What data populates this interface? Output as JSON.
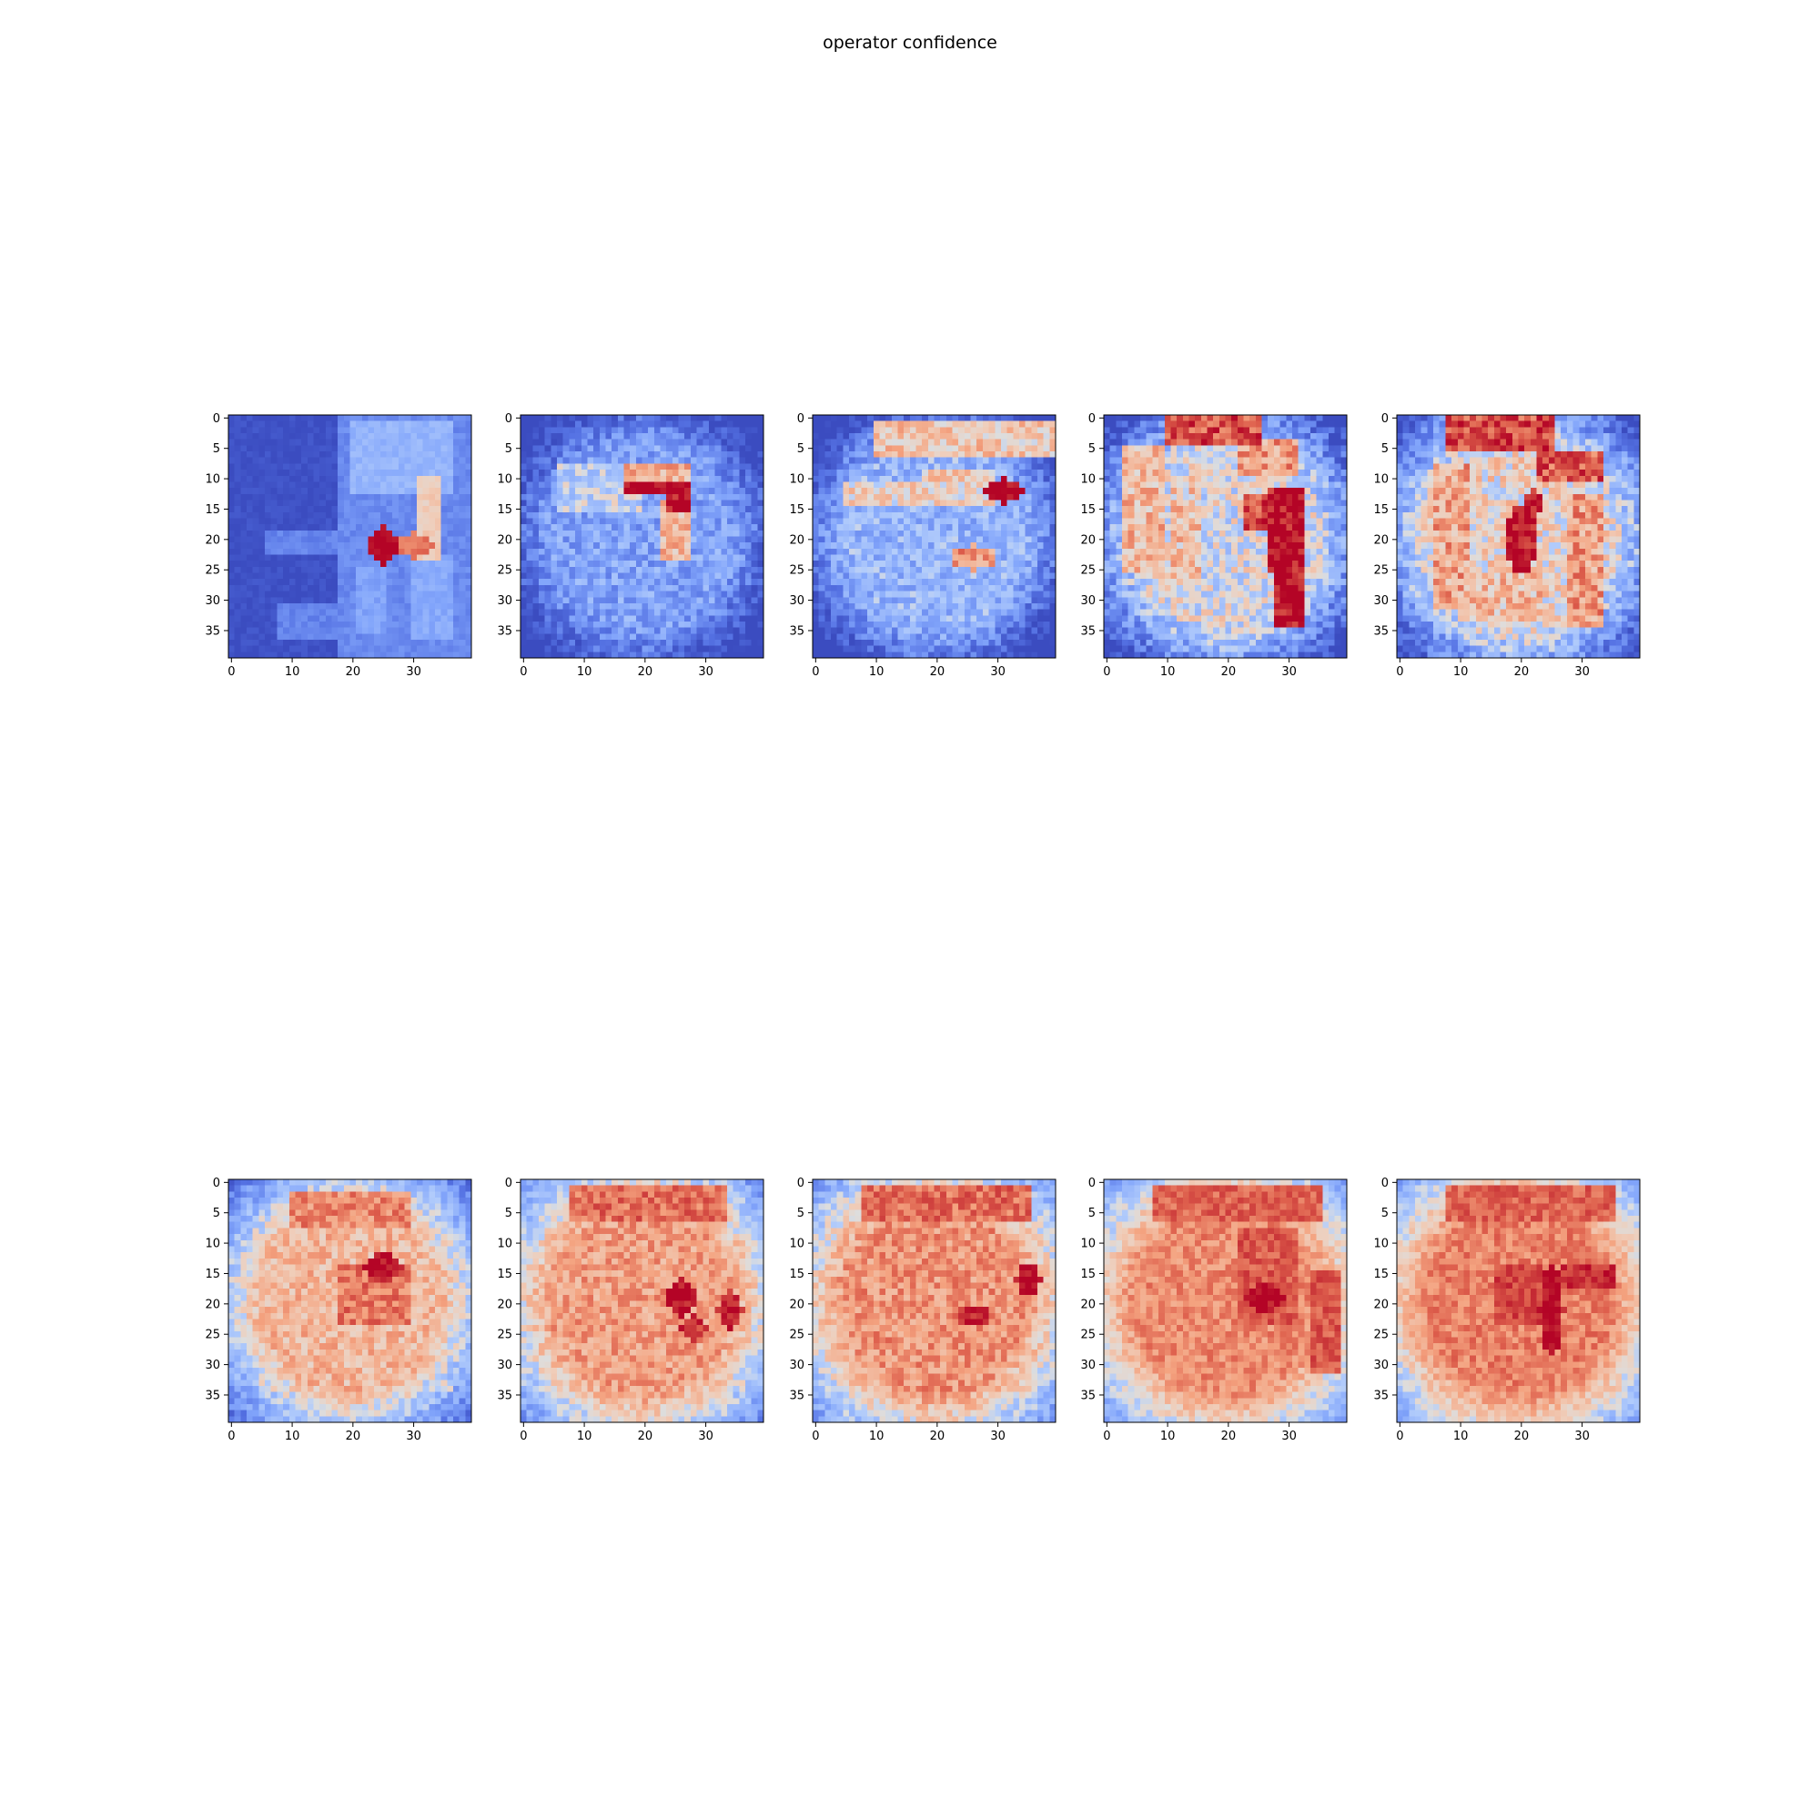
{
  "figure": {
    "title": "operator confidence"
  },
  "chart_data": {
    "type": "heatmap",
    "layout": {
      "rows": 2,
      "cols": 5
    },
    "colormap": {
      "name": "coolwarm",
      "low": "#3b4cc0",
      "mid": "#dddddd",
      "high": "#b40426"
    },
    "grid_size": 40,
    "x_ticks": [
      0,
      10,
      20,
      30
    ],
    "y_ticks": [
      0,
      5,
      10,
      15,
      20,
      25,
      30,
      35
    ],
    "x_tick_labels": [
      "0",
      "10",
      "20",
      "30"
    ],
    "y_tick_labels": [
      "0",
      "5",
      "10",
      "15",
      "20",
      "25",
      "30",
      "35"
    ],
    "panels": [
      {
        "id": "r1c1",
        "base": 0.02,
        "edge_drop": 0.0,
        "noise": 0.04,
        "regions": [
          {
            "type": "rect",
            "x0": 18,
            "x1": 40,
            "y0": 0,
            "y1": 40,
            "value": 0.22
          },
          {
            "type": "rect",
            "x0": 6,
            "x1": 18,
            "y0": 19,
            "y1": 23,
            "value": 0.2
          },
          {
            "type": "rect",
            "x0": 18,
            "x1": 21,
            "y0": 17,
            "y1": 33,
            "value": 0.2
          },
          {
            "type": "rect",
            "x0": 8,
            "x1": 18,
            "y0": 31,
            "y1": 37,
            "value": 0.2
          },
          {
            "type": "rect",
            "x0": 20,
            "x1": 37,
            "y0": 1,
            "y1": 13,
            "value": 0.36
          },
          {
            "type": "rect",
            "x0": 21,
            "x1": 26,
            "y0": 25,
            "y1": 36,
            "value": 0.3
          },
          {
            "type": "rect",
            "x0": 30,
            "x1": 37,
            "y0": 23,
            "y1": 37,
            "value": 0.32
          },
          {
            "type": "rect",
            "x0": 31,
            "x1": 35,
            "y0": 10,
            "y1": 24,
            "value": 0.58
          },
          {
            "type": "blob",
            "cx": 25,
            "cy": 21,
            "rx": 2.4,
            "ry": 3.2,
            "value": 1.0
          },
          {
            "type": "blob",
            "cx": 30,
            "cy": 21,
            "rx": 3.0,
            "ry": 2.0,
            "value": 0.78
          }
        ]
      },
      {
        "id": "r1c2",
        "base": 0.3,
        "edge_drop": 0.45,
        "noise": 0.12,
        "regions": [
          {
            "type": "rect",
            "x0": 6,
            "x1": 20,
            "y0": 8,
            "y1": 16,
            "value": 0.46
          },
          {
            "type": "rect",
            "x0": 17,
            "x1": 28,
            "y0": 8,
            "y1": 11,
            "value": 0.66
          },
          {
            "type": "rect",
            "x0": 23,
            "x1": 28,
            "y0": 14,
            "y1": 24,
            "value": 0.64
          },
          {
            "type": "rect",
            "x0": 17,
            "x1": 25,
            "y0": 11,
            "y1": 13,
            "value": 1.0
          },
          {
            "type": "rect",
            "x0": 24,
            "x1": 28,
            "y0": 11,
            "y1": 16,
            "value": 1.0
          }
        ]
      },
      {
        "id": "r1c3",
        "base": 0.36,
        "edge_drop": 0.5,
        "noise": 0.12,
        "regions": [
          {
            "type": "rect",
            "x0": 10,
            "x1": 40,
            "y0": 1,
            "y1": 7,
            "value": 0.6
          },
          {
            "type": "rect",
            "x0": 5,
            "x1": 30,
            "y0": 11,
            "y1": 15,
            "value": 0.56
          },
          {
            "type": "rect",
            "x0": 18,
            "x1": 30,
            "y0": 9,
            "y1": 11,
            "value": 0.6
          },
          {
            "type": "blob",
            "cx": 26,
            "cy": 23,
            "rx": 3.5,
            "ry": 2.0,
            "value": 0.72
          },
          {
            "type": "blob",
            "cx": 31,
            "cy": 12,
            "rx": 3.4,
            "ry": 2.0,
            "value": 1.0
          }
        ]
      },
      {
        "id": "r1c4",
        "base": 0.5,
        "edge_drop": 0.55,
        "noise": 0.14,
        "regions": [
          {
            "type": "rect",
            "x0": 10,
            "x1": 26,
            "y0": 0,
            "y1": 5,
            "value": 0.86
          },
          {
            "type": "rect",
            "x0": 22,
            "x1": 32,
            "y0": 4,
            "y1": 10,
            "value": 0.7
          },
          {
            "type": "rect",
            "x0": 3,
            "x1": 10,
            "y0": 5,
            "y1": 26,
            "value": 0.63
          },
          {
            "type": "rect",
            "x0": 11,
            "x1": 16,
            "y0": 10,
            "y1": 28,
            "value": 0.6
          },
          {
            "type": "rect",
            "x0": 23,
            "x1": 27,
            "y0": 13,
            "y1": 19,
            "value": 0.88
          },
          {
            "type": "rect",
            "x0": 27,
            "x1": 33,
            "y0": 12,
            "y1": 26,
            "value": 1.0
          },
          {
            "type": "rect",
            "x0": 28,
            "x1": 33,
            "y0": 26,
            "y1": 35,
            "value": 1.0
          }
        ]
      },
      {
        "id": "r1c5",
        "base": 0.55,
        "edge_drop": 0.55,
        "noise": 0.14,
        "regions": [
          {
            "type": "rect",
            "x0": 8,
            "x1": 26,
            "y0": 0,
            "y1": 6,
            "value": 0.86
          },
          {
            "type": "rect",
            "x0": 23,
            "x1": 34,
            "y0": 6,
            "y1": 11,
            "value": 0.84
          },
          {
            "type": "rect",
            "x0": 6,
            "x1": 12,
            "y0": 8,
            "y1": 32,
            "value": 0.68
          },
          {
            "type": "rect",
            "x0": 28,
            "x1": 34,
            "y0": 13,
            "y1": 35,
            "value": 0.7
          },
          {
            "type": "rect",
            "x0": 10,
            "x1": 24,
            "y0": 26,
            "y1": 34,
            "value": 0.62
          },
          {
            "type": "blob",
            "cx": 20,
            "cy": 20,
            "rx": 2.6,
            "ry": 5.5,
            "value": 1.0
          },
          {
            "type": "blob",
            "cx": 22,
            "cy": 14,
            "rx": 1.6,
            "ry": 2.5,
            "value": 1.0
          }
        ]
      },
      {
        "id": "r2c1",
        "base": 0.64,
        "edge_drop": 0.5,
        "noise": 0.1,
        "regions": [
          {
            "type": "rect",
            "x0": 5,
            "x1": 37,
            "y0": 33,
            "y1": 35,
            "value": 0.5
          },
          {
            "type": "rect",
            "x0": 5,
            "x1": 7,
            "y0": 8,
            "y1": 35,
            "value": 0.5
          },
          {
            "type": "rect",
            "x0": 10,
            "x1": 30,
            "y0": 2,
            "y1": 8,
            "value": 0.74
          },
          {
            "type": "rect",
            "x0": 18,
            "x1": 30,
            "y0": 14,
            "y1": 24,
            "value": 0.78
          },
          {
            "type": "blob",
            "cx": 25,
            "cy": 14,
            "rx": 3.2,
            "ry": 2.4,
            "value": 1.0
          }
        ]
      },
      {
        "id": "r2c2",
        "base": 0.7,
        "edge_drop": 0.45,
        "noise": 0.1,
        "regions": [
          {
            "type": "rect",
            "x0": 5,
            "x1": 37,
            "y0": 33,
            "y1": 35,
            "value": 0.52
          },
          {
            "type": "rect",
            "x0": 5,
            "x1": 7,
            "y0": 8,
            "y1": 35,
            "value": 0.54
          },
          {
            "type": "rect",
            "x0": 8,
            "x1": 34,
            "y0": 1,
            "y1": 7,
            "value": 0.8
          },
          {
            "type": "blob",
            "cx": 26,
            "cy": 19,
            "rx": 2.6,
            "ry": 3.0,
            "value": 1.0
          },
          {
            "type": "blob",
            "cx": 28,
            "cy": 24,
            "rx": 2.2,
            "ry": 2.0,
            "value": 0.9
          },
          {
            "type": "blob",
            "cx": 34,
            "cy": 21,
            "rx": 2.0,
            "ry": 3.0,
            "value": 0.96
          }
        ]
      },
      {
        "id": "r2c3",
        "base": 0.72,
        "edge_drop": 0.45,
        "noise": 0.1,
        "regions": [
          {
            "type": "rect",
            "x0": 5,
            "x1": 37,
            "y0": 33,
            "y1": 35,
            "value": 0.54
          },
          {
            "type": "rect",
            "x0": 5,
            "x1": 7,
            "y0": 8,
            "y1": 35,
            "value": 0.56
          },
          {
            "type": "rect",
            "x0": 8,
            "x1": 36,
            "y0": 1,
            "y1": 7,
            "value": 0.8
          },
          {
            "type": "rect",
            "x0": 28,
            "x1": 35,
            "y0": 25,
            "y1": 36,
            "value": 0.45
          },
          {
            "type": "blob",
            "cx": 26,
            "cy": 22,
            "rx": 3.4,
            "ry": 1.6,
            "value": 0.9
          },
          {
            "type": "blob",
            "cx": 35,
            "cy": 16,
            "rx": 2.2,
            "ry": 2.4,
            "value": 1.0
          }
        ]
      },
      {
        "id": "r2c4",
        "base": 0.74,
        "edge_drop": 0.45,
        "noise": 0.08,
        "regions": [
          {
            "type": "rect",
            "x0": 5,
            "x1": 37,
            "y0": 33,
            "y1": 35,
            "value": 0.55
          },
          {
            "type": "rect",
            "x0": 5,
            "x1": 7,
            "y0": 8,
            "y1": 35,
            "value": 0.58
          },
          {
            "type": "rect",
            "x0": 8,
            "x1": 36,
            "y0": 1,
            "y1": 7,
            "value": 0.82
          },
          {
            "type": "rect",
            "x0": 34,
            "x1": 39,
            "y0": 15,
            "y1": 32,
            "value": 0.84
          },
          {
            "type": "rect",
            "x0": 22,
            "x1": 32,
            "y0": 8,
            "y1": 24,
            "value": 0.84
          },
          {
            "type": "blob",
            "cx": 26,
            "cy": 19,
            "rx": 3.0,
            "ry": 2.4,
            "value": 1.0
          }
        ]
      },
      {
        "id": "r2c5",
        "base": 0.76,
        "edge_drop": 0.45,
        "noise": 0.08,
        "regions": [
          {
            "type": "rect",
            "x0": 5,
            "x1": 37,
            "y0": 33,
            "y1": 35,
            "value": 0.58
          },
          {
            "type": "rect",
            "x0": 5,
            "x1": 7,
            "y0": 8,
            "y1": 35,
            "value": 0.6
          },
          {
            "type": "rect",
            "x0": 8,
            "x1": 36,
            "y0": 1,
            "y1": 7,
            "value": 0.82
          },
          {
            "type": "rect",
            "x0": 16,
            "x1": 24,
            "y0": 14,
            "y1": 24,
            "value": 0.88
          },
          {
            "type": "rect",
            "x0": 27,
            "x1": 36,
            "y0": 14,
            "y1": 18,
            "value": 0.92
          },
          {
            "type": "blob",
            "cx": 25,
            "cy": 21,
            "rx": 2.0,
            "ry": 7.0,
            "value": 1.0
          }
        ]
      }
    ]
  }
}
